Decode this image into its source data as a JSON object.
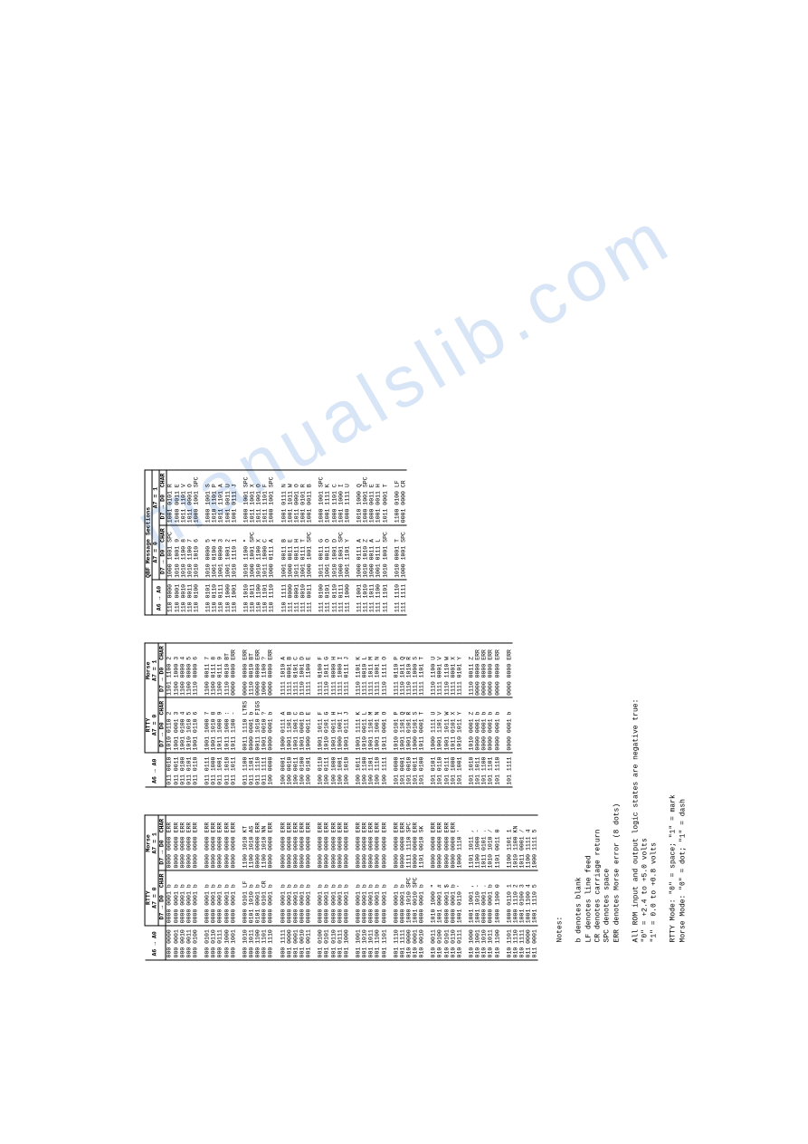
{
  "watermark": "manualslib.com",
  "tables": [
    {
      "addr_header": "A6 → A0",
      "sections": [
        {
          "mode": "RTTY",
          "a7": "A7 = 0",
          "data_header": "D7 → D0",
          "char_header": "CHAR"
        },
        {
          "mode": "Morse",
          "a7": "A7 = 1",
          "data_header": "D7 → D0",
          "char_header": "CHAR"
        }
      ],
      "groups": [
        [
          [
            "000 0000",
            "0000 0001",
            "b",
            "0000 0000",
            "ERR"
          ],
          [
            "000 0001",
            "0000 0001",
            "b",
            "0000 0000",
            "ERR"
          ],
          [
            "000 0010",
            "0000 0001",
            "b",
            "0000 0000",
            "ERR"
          ],
          [
            "000 0011",
            "0000 0001",
            "b",
            "0000 0000",
            "ERR"
          ],
          [
            "000 0100",
            "0000 0001",
            "b",
            "0000 0000",
            "ERR"
          ]
        ],
        [
          [
            "000 0101",
            "0000 0001",
            "b",
            "0000 0000",
            "ERR"
          ],
          [
            "000 0110",
            "0000 0001",
            "b",
            "0000 0000",
            "ERR"
          ],
          [
            "000 0111",
            "0000 0001",
            "b",
            "0000 0000",
            "ERR"
          ],
          [
            "000 1000",
            "0000 0001",
            "b",
            "0000 0000",
            "ERR"
          ],
          [
            "000 1001",
            "0000 0001",
            "b",
            "0000 0000",
            "ERR"
          ]
        ],
        [
          [
            "000 1010",
            "0000 0101",
            "LF",
            "1100 1010",
            "KT"
          ],
          [
            "000 1011",
            "0101 1010",
            "b",
            "1100 1010",
            "AS"
          ],
          [
            "000 1100",
            "0101 0001",
            "b",
            "0000 0000",
            "ERR"
          ],
          [
            "000 1101",
            "0000 0101",
            "CR",
            "1100 1010",
            "NN"
          ],
          [
            "000 1110",
            "0000 0001",
            "b",
            "0000 0000",
            "ERR"
          ]
        ],
        [
          [
            "000 1111",
            "0000 0001",
            "b",
            "0000 0000",
            "ERR"
          ],
          [
            "001 0000",
            "0000 0001",
            "b",
            "0000 0000",
            "ERR"
          ],
          [
            "001 0001",
            "0000 0001",
            "b",
            "0000 0000",
            "ERR"
          ],
          [
            "001 0010",
            "0000 0001",
            "b",
            "0000 0000",
            "ERR"
          ],
          [
            "001 0011",
            "0000 0001",
            "b",
            "0000 0000",
            "ERR"
          ]
        ],
        [
          [
            "001 0100",
            "0000 0001",
            "b",
            "0000 0000",
            "ERR"
          ],
          [
            "001 0101",
            "0000 0001",
            "b",
            "0000 0000",
            "ERR"
          ],
          [
            "001 0110",
            "0000 0001",
            "b",
            "0000 0000",
            "ERR"
          ],
          [
            "001 0111",
            "0000 0001",
            "b",
            "0000 0000",
            "ERR"
          ],
          [
            "001 1000",
            "0000 0001",
            "b",
            "0000 0000",
            "ERR"
          ]
        ],
        [
          [
            "001 1001",
            "0000 0001",
            "b",
            "0000 0000",
            "ERR"
          ],
          [
            "001 1010",
            "0000 0001",
            "b",
            "0000 0000",
            "ERR"
          ],
          [
            "001 1011",
            "0000 0001",
            "b",
            "0000 0000",
            "ERR"
          ],
          [
            "001 1100",
            "0000 0001",
            "b",
            "0000 0000",
            "ERR"
          ],
          [
            "001 1101",
            "0000 0001",
            "b",
            "0000 0000",
            "ERR"
          ]
        ],
        [
          [
            "001 1110",
            "0000 0001",
            "b",
            "0000 0000",
            "ERR"
          ],
          [
            "001 1111",
            "0000 0001",
            "b",
            "0000 0000",
            "ERR"
          ],
          [
            "010 0000",
            "1000 1010",
            "SPC",
            "1111 1110",
            "SPC"
          ],
          [
            "010 0001",
            "1001 0010",
            "SPC",
            "0000 0000",
            "ERR"
          ],
          [
            "010 0010",
            "0000 0001",
            "b",
            "1101 0010",
            "SK"
          ]
        ],
        [
          [
            "010 0011",
            "1010 1000",
            "\"",
            "0000 0000",
            "ERR"
          ],
          [
            "010 0100",
            "1001 0001",
            "#",
            "0000 0000",
            "ERR"
          ],
          [
            "010 0101",
            "0000 0001",
            "$",
            "0000 0000",
            "ERR"
          ],
          [
            "010 0110",
            "0000 0001",
            "b",
            "0000 0000",
            "ERR"
          ],
          [
            "010 0111",
            "1001 0110",
            "'",
            "1000 1110",
            "'"
          ]
        ],
        [
          [
            "010 1000",
            "1001 1001",
            ",",
            "1101 1011",
            ","
          ],
          [
            "010 1001",
            "1001 1010",
            "-",
            "1100 1000",
            "-"
          ],
          [
            "010 1010",
            "0000 0001",
            ".",
            "1011 0101",
            "."
          ],
          [
            "010 1011",
            "0000 0001",
            "b",
            "1010 1010",
            "/"
          ],
          [
            "010 1100",
            "1000 1100",
            "0",
            "1101 0011",
            "0"
          ]
        ],
        [
          [
            "010 1101",
            "1000 0110",
            "1",
            "1100 1101",
            "1"
          ],
          [
            "010 1110",
            "1000 1110",
            "2",
            "1010 1100",
            "KN"
          ],
          [
            "010 1111",
            "1001 0100",
            "3",
            "1011 0001",
            "/"
          ],
          [
            "011 0000",
            "1001 1100",
            "4",
            "1100 1111",
            "4"
          ],
          [
            "011 0001",
            "1001 1110",
            "5",
            "1000 1111",
            "5"
          ]
        ]
      ]
    },
    {
      "addr_header": "A6 → A0",
      "sections": [
        {
          "mode": "RTTY",
          "a7": "A7 = 0",
          "data_header": "D7 → D0",
          "char_header": "CHAR"
        },
        {
          "mode": "Morse",
          "a7": "A7 = 1",
          "data_header": "D7 → D0",
          "char_header": "CHAR"
        }
      ],
      "groups": [
        [
          [
            "011 0010",
            "1010 0110",
            "2",
            "1101 1100",
            "2"
          ],
          [
            "011 0011",
            "1001 0001",
            "3",
            "1100 1000",
            "3"
          ],
          [
            "011 0100",
            "1001 0100",
            "4",
            "1100 0000",
            "4"
          ],
          [
            "011 0101",
            "1010 1010",
            "5",
            "1100 0000",
            "5"
          ],
          [
            "011 0110",
            "1001 0110",
            "6",
            "1110 0000",
            "6"
          ]
        ],
        [
          [
            "011 0111",
            "1001 1000",
            "7",
            "1100 0011",
            "7"
          ],
          [
            "011 1000",
            "1001 1010",
            "8",
            "1100 0111",
            "8"
          ],
          [
            "011 1001",
            "1011 1000",
            "9",
            "1100 0111",
            "9"
          ],
          [
            "011 1010",
            "1011 1000",
            ":",
            "1110 0010",
            "BT"
          ],
          [
            "011 1011",
            "1011 1100",
            "-",
            "0000 0000",
            "ERR"
          ]
        ],
        [
          [
            "011 1100",
            "0011 1110",
            "LTRS",
            "0000 0000",
            "ERR"
          ],
          [
            "011 1101",
            "0000 0001",
            "b",
            "1110 0010",
            "BT"
          ],
          [
            "011 1110",
            "0011 1010",
            "FIGS",
            "0000 0000",
            "ERR"
          ],
          [
            "011 1111",
            "1001 0010",
            "?",
            "1000 1100",
            "?"
          ],
          [
            "100 0000",
            "0000 0001",
            "b",
            "0000 0000",
            "ERR"
          ]
        ],
        [
          [
            "100 0001",
            "1000 0111",
            "A",
            "1111 1010",
            "A"
          ],
          [
            "100 0010",
            "1001 1101",
            "B",
            "1111 0001",
            "B"
          ],
          [
            "100 0011",
            "1001 1001",
            "C",
            "1111 0101",
            "C"
          ],
          [
            "100 0100",
            "1001 0001",
            "D",
            "1110 1001",
            "D"
          ],
          [
            "100 0101",
            "1000 0011",
            "E",
            "1111 1100",
            "E"
          ]
        ],
        [
          [
            "100 0110",
            "1001 1011",
            "F",
            "1111 0100",
            "F"
          ],
          [
            "100 0111",
            "1010 0101",
            "G",
            "1110 1011",
            "G"
          ],
          [
            "100 1000",
            "1001 0011",
            "H",
            "1111 0000",
            "H"
          ],
          [
            "100 1001",
            "1000 1001",
            "I",
            "1111 1000",
            "I"
          ],
          [
            "100 1010",
            "1001 0111",
            "J",
            "1111 0111",
            "J"
          ]
        ],
        [
          [
            "100 1011",
            "1001 1111",
            "K",
            "1110 1101",
            "K"
          ],
          [
            "100 1100",
            "1010 0011",
            "L",
            "1111 0010",
            "L"
          ],
          [
            "100 1101",
            "1001 1101",
            "M",
            "1111 1011",
            "M"
          ],
          [
            "100 1110",
            "1001 1001",
            "N",
            "1111 1001",
            "N"
          ],
          [
            "100 1111",
            "1011 0001",
            "O",
            "1110 1111",
            "O"
          ]
        ],
        [
          [
            "101 0000",
            "1010 0101",
            "P",
            "1111 0110",
            "P"
          ],
          [
            "101 0001",
            "1001 1101",
            "Q",
            "1110 1011",
            "Q"
          ],
          [
            "101 0010",
            "1001 0101",
            "R",
            "1110 1010",
            "R"
          ],
          [
            "101 0011",
            "1000 0101",
            "S",
            "1111 1000",
            "S"
          ],
          [
            "101 0100",
            "1011 0001",
            "T",
            "1111 1101",
            "T"
          ]
        ],
        [
          [
            "101 0101",
            "1000 1111",
            "U",
            "1110 1100",
            "U"
          ],
          [
            "101 0110",
            "1001 1101",
            "V",
            "1111 0001",
            "V"
          ],
          [
            "101 0111",
            "1001 1011",
            "W",
            "1110 1110",
            "W"
          ],
          [
            "101 1000",
            "1011 0101",
            "X",
            "1111 0001",
            "X"
          ],
          [
            "101 1001",
            "1010 1011",
            "Y",
            "1111 0101",
            "Y"
          ]
        ],
        [
          [
            "101 1010",
            "1010 0001",
            "Z",
            "1110 0011",
            "Z"
          ],
          [
            "101 1011",
            "0000 0001",
            "b",
            "0000 0000",
            "ERR"
          ],
          [
            "101 1100",
            "0000 0001",
            "b",
            "0000 0000",
            "ERR"
          ],
          [
            "101 1101",
            "0000 0001",
            "b",
            "0000 0000",
            "ERR"
          ],
          [
            "101 1110",
            "0000 0001",
            "b",
            "0000 0000",
            "ERR"
          ]
        ],
        [
          [
            "101 1111",
            "0000 0001",
            "b",
            "0000 0000",
            "ERR"
          ]
        ]
      ]
    },
    {
      "title": "QBF Message Sections",
      "addr_header": "A6 → A0",
      "sections": [
        {
          "mode": "",
          "a7": "A7 = 0",
          "data_header": "D7 → D0",
          "char_header": "CHAR"
        },
        {
          "mode": "",
          "a7": "A7 = 1",
          "data_header": "D7 → D0",
          "char_header": "CHAR"
        }
      ],
      "groups": [
        [
          [
            "110 0000",
            "1000 1001",
            "SPC",
            "1001 0101",
            "R"
          ],
          [
            "110 0001",
            "1010 1001",
            "9",
            "1000 0011",
            "E"
          ],
          [
            "110 0010",
            "1010 1100",
            "8",
            "1011 1101",
            "V"
          ],
          [
            "110 0011",
            "1010 1100",
            "7",
            "1011 0001",
            "O"
          ],
          [
            "110 0100",
            "1010 1010",
            "6",
            "1000 1001",
            "SPC"
          ]
        ],
        [
          [
            "110 0101",
            "1010 0000",
            "5",
            "1000 1001",
            "S"
          ],
          [
            "110 0110",
            "1001 0100",
            "4",
            "1010 1101",
            "P"
          ],
          [
            "110 0111",
            "1001 0000",
            "3",
            "1011 1101",
            "A"
          ],
          [
            "110 1000",
            "1001 1001",
            "2",
            "1001 0011",
            "U"
          ],
          [
            "110 1001",
            "1010 1110",
            "1",
            "1001 0111",
            "J"
          ]
        ],
        [
          [
            "110 1010",
            "1010 1100",
            "\"",
            "1000 1001",
            "SPC"
          ],
          [
            "110 1011",
            "1000 1001",
            "SPC",
            "1011 1001",
            "X"
          ],
          [
            "110 1100",
            "1010 1100",
            "X",
            "1011 1001",
            "O"
          ],
          [
            "110 1101",
            "1011 1000",
            "C",
            "1011 1101",
            "F"
          ],
          [
            "110 1110",
            "1000 0111",
            "A",
            "1000 1001",
            "SPC"
          ]
        ],
        [
          [
            "110 1111",
            "1001 0011",
            "B",
            "1001 0111",
            "N"
          ],
          [
            "111 0000",
            "1000 0011",
            "E",
            "1001 1011",
            "W"
          ],
          [
            "111 0001",
            "1011 0011",
            "H",
            "1011 0001",
            "O"
          ],
          [
            "111 0010",
            "1001 0111",
            "T",
            "1001 0101",
            "R"
          ],
          [
            "111 0011",
            "1000 1001",
            "SPC",
            "1001 0011",
            "B"
          ]
        ],
        [
          [
            "111 0100",
            "1011 0011",
            "G",
            "1000 1001",
            "SPC"
          ],
          [
            "111 0101",
            "1001 0011",
            "O",
            "1001 1111",
            "K"
          ],
          [
            "111 0110",
            "1010 1001",
            "D",
            "1000 1101",
            "C"
          ],
          [
            "111 0111",
            "1000 1001",
            "SPC",
            "1001 1000",
            "I"
          ],
          [
            "111 1000",
            "1001 1101",
            "Y",
            "1000 1111",
            "U"
          ]
        ],
        [
          [
            "111 1001",
            "1000 0111",
            "A",
            "1010 1000",
            "Q"
          ],
          [
            "111 1010",
            "1010 1010",
            "Z",
            "1000 1001",
            "SPC"
          ],
          [
            "111 1011",
            "1000 0011",
            "A",
            "1000 0011",
            "E"
          ],
          [
            "111 1100",
            "1001 0111",
            "L",
            "1001 0011",
            "H"
          ],
          [
            "111 1101",
            "1010 1001",
            "SPC",
            "1011 0001",
            "T"
          ]
        ],
        [
          [
            "111 1110",
            "1010 0001",
            "T",
            "1100 0100",
            "LF"
          ],
          [
            "111 1111",
            "1000 1001",
            "SPC",
            "0001 0000",
            "CR"
          ]
        ]
      ]
    }
  ],
  "notes": {
    "title": "Notes:",
    "defs": [
      "b   denotes blank",
      "LF  denotes line feed",
      "CR  denotes carriage return",
      "SPC denotes space",
      "ERR denotes Morse error (8 dots)"
    ],
    "logic_title": "All ROM input and output logic states are negative true:",
    "logic_lines": [
      "\"0\" = +2.4 to +5.0 volts",
      "\"1\" =  0.0 to +0.8 volts"
    ],
    "modes": [
      "RTTY Mode:  \"0\" = space; \"1\" = mark",
      "Morse Mode: \"0\" = dot;   \"1\" = dash"
    ]
  }
}
